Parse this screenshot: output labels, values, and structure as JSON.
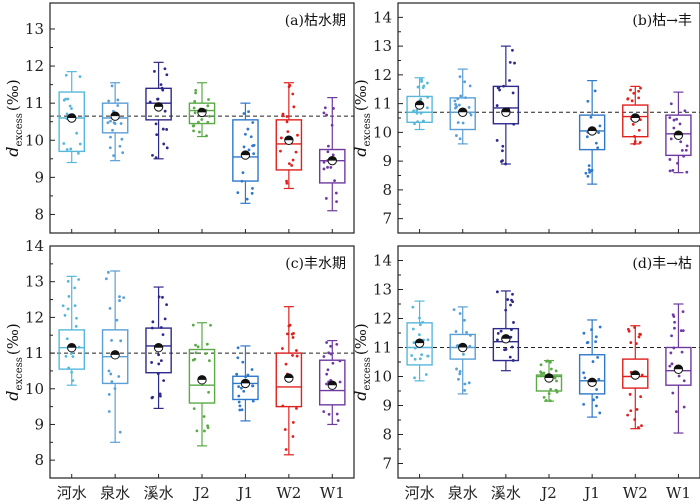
{
  "figure": {
    "y_label_main": "d",
    "y_label_sub": "excess",
    "y_label_unit": "(‰)",
    "categories": [
      "河水",
      "泉水",
      "溪水",
      "J2",
      "J1",
      "W2",
      "W1"
    ],
    "colors": [
      "#57b8dc",
      "#5a9fd6",
      "#2e2a8a",
      "#5aaa46",
      "#2f78c9",
      "#e0201d",
      "#6e3aa0"
    ],
    "reference_label": "dashed line"
  },
  "chart_data": [
    {
      "type": "box",
      "panel": "a",
      "title": "(a)枯水期",
      "ylim": [
        7.5,
        13.7
      ],
      "yticks": [
        8,
        9,
        10,
        11,
        12,
        13
      ],
      "reference_y": 10.65,
      "boxes": [
        {
          "category": "河水",
          "whisker_low": 9.4,
          "q1": 9.7,
          "median": 10.6,
          "q3": 11.3,
          "whisker_high": 11.85,
          "mean": 10.6
        },
        {
          "category": "泉水",
          "whisker_low": 9.45,
          "q1": 10.2,
          "median": 10.6,
          "q3": 11.0,
          "whisker_high": 11.55,
          "mean": 10.65
        },
        {
          "category": "溪水",
          "whisker_low": 9.5,
          "q1": 10.55,
          "median": 11.0,
          "q3": 11.4,
          "whisker_high": 12.1,
          "mean": 10.9
        },
        {
          "category": "J2",
          "whisker_low": 10.1,
          "q1": 10.45,
          "median": 10.8,
          "q3": 11.0,
          "whisker_high": 11.55,
          "mean": 10.75
        },
        {
          "category": "J1",
          "whisker_low": 8.3,
          "q1": 8.9,
          "median": 9.55,
          "q3": 10.55,
          "whisker_high": 11.0,
          "mean": 9.6
        },
        {
          "category": "W2",
          "whisker_low": 8.7,
          "q1": 9.2,
          "median": 9.9,
          "q3": 10.55,
          "whisker_high": 11.55,
          "mean": 10.0
        },
        {
          "category": "W1",
          "whisker_low": 8.1,
          "q1": 8.85,
          "median": 9.45,
          "q3": 9.75,
          "whisker_high": 11.15,
          "mean": 9.45
        }
      ]
    },
    {
      "type": "box",
      "panel": "b",
      "title": "(b)枯→丰",
      "ylim": [
        6.5,
        14.5
      ],
      "yticks": [
        7,
        8,
        9,
        10,
        11,
        12,
        13,
        14
      ],
      "reference_y": 10.7,
      "boxes": [
        {
          "category": "河水",
          "whisker_low": 10.1,
          "q1": 10.35,
          "median": 10.7,
          "q3": 11.25,
          "whisker_high": 11.9,
          "mean": 10.95
        },
        {
          "category": "泉水",
          "whisker_low": 9.6,
          "q1": 10.1,
          "median": 10.7,
          "q3": 11.2,
          "whisker_high": 12.2,
          "mean": 10.7
        },
        {
          "category": "溪水",
          "whisker_low": 8.9,
          "q1": 10.3,
          "median": 10.85,
          "q3": 11.6,
          "whisker_high": 13.0,
          "mean": 10.7
        },
        {
          "category": "J1",
          "whisker_low": 8.2,
          "q1": 9.4,
          "median": 10.05,
          "q3": 10.6,
          "whisker_high": 11.8,
          "mean": 10.05
        },
        {
          "category": "W2",
          "whisker_low": 9.6,
          "q1": 9.85,
          "median": 10.55,
          "q3": 10.95,
          "whisker_high": 11.6,
          "mean": 10.5
        },
        {
          "category": "W1",
          "whisker_low": 8.6,
          "q1": 9.2,
          "median": 9.95,
          "q3": 10.6,
          "whisker_high": 11.4,
          "mean": 9.9
        }
      ]
    },
    {
      "type": "box",
      "panel": "c",
      "title": "(c)丰水期",
      "ylim": [
        7.5,
        14.0
      ],
      "yticks": [
        8,
        9,
        10,
        11,
        12,
        13,
        14
      ],
      "reference_y": 11.0,
      "boxes": [
        {
          "category": "河水",
          "whisker_low": 10.1,
          "q1": 10.55,
          "median": 11.15,
          "q3": 11.65,
          "whisker_high": 13.15,
          "mean": 11.15
        },
        {
          "category": "泉水",
          "whisker_low": 8.5,
          "q1": 10.15,
          "median": 10.9,
          "q3": 11.65,
          "whisker_high": 13.3,
          "mean": 10.95
        },
        {
          "category": "溪水",
          "whisker_low": 9.45,
          "q1": 10.45,
          "median": 11.2,
          "q3": 11.7,
          "whisker_high": 12.85,
          "mean": 11.15
        },
        {
          "category": "J2",
          "whisker_low": 8.4,
          "q1": 9.6,
          "median": 10.1,
          "q3": 11.1,
          "whisker_high": 11.85,
          "mean": 10.25
        },
        {
          "category": "J1",
          "whisker_low": 9.1,
          "q1": 9.7,
          "median": 10.15,
          "q3": 10.35,
          "whisker_high": 11.2,
          "mean": 10.15
        },
        {
          "category": "W2",
          "whisker_low": 8.15,
          "q1": 9.5,
          "median": 10.05,
          "q3": 11.0,
          "whisker_high": 12.3,
          "mean": 10.3
        },
        {
          "category": "W1",
          "whisker_low": 9.0,
          "q1": 9.55,
          "median": 9.95,
          "q3": 10.8,
          "whisker_high": 11.35,
          "mean": 10.1
        }
      ]
    },
    {
      "type": "box",
      "panel": "d",
      "title": "(d)丰→枯",
      "ylim": [
        6.5,
        14.5
      ],
      "yticks": [
        7,
        8,
        9,
        10,
        11,
        12,
        13,
        14
      ],
      "reference_y": 11.0,
      "boxes": [
        {
          "category": "河水",
          "whisker_low": 9.85,
          "q1": 10.4,
          "median": 11.0,
          "q3": 11.85,
          "whisker_high": 12.6,
          "mean": 11.15
        },
        {
          "category": "泉水",
          "whisker_low": 9.4,
          "q1": 10.6,
          "median": 11.0,
          "q3": 11.45,
          "whisker_high": 12.4,
          "mean": 11.0
        },
        {
          "category": "溪水",
          "whisker_low": 10.2,
          "q1": 10.55,
          "median": 11.2,
          "q3": 11.65,
          "whisker_high": 12.95,
          "mean": 11.3
        },
        {
          "category": "J2",
          "whisker_low": 9.15,
          "q1": 9.5,
          "median": 10.0,
          "q3": 10.05,
          "whisker_high": 10.55,
          "mean": 9.95
        },
        {
          "category": "J1",
          "whisker_low": 8.6,
          "q1": 9.4,
          "median": 9.85,
          "q3": 10.75,
          "whisker_high": 11.95,
          "mean": 9.8
        },
        {
          "category": "W2",
          "whisker_low": 8.2,
          "q1": 9.6,
          "median": 10.0,
          "q3": 10.6,
          "whisker_high": 11.75,
          "mean": 10.05
        },
        {
          "category": "W1",
          "whisker_low": 8.05,
          "q1": 9.7,
          "median": 10.2,
          "q3": 11.0,
          "whisker_high": 12.5,
          "mean": 10.25
        }
      ]
    }
  ]
}
